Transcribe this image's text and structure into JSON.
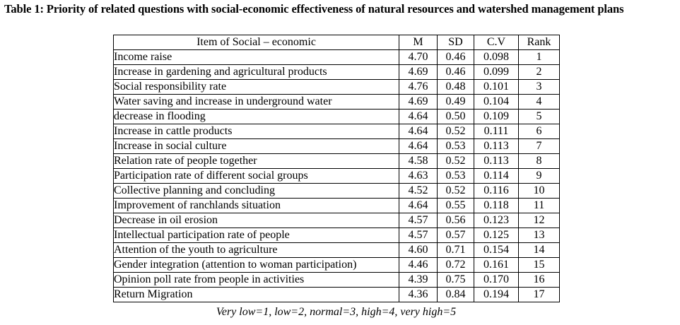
{
  "caption": "Table 1: Priority of related questions with social-economic effectiveness of natural resources and watershed management plans",
  "table": {
    "headers": {
      "item": "Item of Social – economic",
      "m": "M",
      "sd": "SD",
      "cv": "C.V",
      "rank": "Rank"
    },
    "rows": [
      {
        "item": "Income raise",
        "m": "4.70",
        "sd": "0.46",
        "cv": "0.098",
        "rank": "1"
      },
      {
        "item": "Increase in gardening and agricultural products",
        "m": "4.69",
        "sd": "0.46",
        "cv": "0.099",
        "rank": "2"
      },
      {
        "item": "Social responsibility rate",
        "m": "4.76",
        "sd": "0.48",
        "cv": "0.101",
        "rank": "3"
      },
      {
        "item": "Water saving and increase in underground water",
        "m": "4.69",
        "sd": "0.49",
        "cv": "0.104",
        "rank": "4"
      },
      {
        "item": "decrease in flooding",
        "m": "4.64",
        "sd": "0.50",
        "cv": "0.109",
        "rank": "5"
      },
      {
        "item": "Increase in cattle products",
        "m": "4.64",
        "sd": "0.52",
        "cv": "0.111",
        "rank": "6"
      },
      {
        "item": "Increase in social culture",
        "m": "4.64",
        "sd": "0.53",
        "cv": "0.113",
        "rank": "7"
      },
      {
        "item": "Relation rate of people together",
        "m": "4.58",
        "sd": "0.52",
        "cv": "0.113",
        "rank": "8"
      },
      {
        "item": "Participation rate of different social groups",
        "m": "4.63",
        "sd": "0.53",
        "cv": "0.114",
        "rank": "9"
      },
      {
        "item": "Collective planning and concluding",
        "m": "4.52",
        "sd": "0.52",
        "cv": "0.116",
        "rank": "10"
      },
      {
        "item": "Improvement of ranchlands situation",
        "m": "4.64",
        "sd": "0.55",
        "cv": "0.118",
        "rank": "11"
      },
      {
        "item": "Decrease in oil erosion",
        "m": "4.57",
        "sd": "0.56",
        "cv": "0.123",
        "rank": "12"
      },
      {
        "item": "Intellectual participation rate of people",
        "m": "4.57",
        "sd": "0.57",
        "cv": "0.125",
        "rank": "13"
      },
      {
        "item": "Attention of the youth to agriculture",
        "m": "4.60",
        "sd": "0.71",
        "cv": "0.154",
        "rank": "14"
      },
      {
        "item": "Gender integration (attention to woman participation)",
        "m": "4.46",
        "sd": "0.72",
        "cv": "0.161",
        "rank": "15"
      },
      {
        "item": "Opinion poll rate from people in activities",
        "m": "4.39",
        "sd": "0.75",
        "cv": "0.170",
        "rank": "16"
      },
      {
        "item": "Return Migration",
        "m": "4.36",
        "sd": "0.84",
        "cv": "0.194",
        "rank": "17"
      }
    ]
  },
  "footnote": "Very low=1, low=2, normal=3, high=4, very high=5"
}
